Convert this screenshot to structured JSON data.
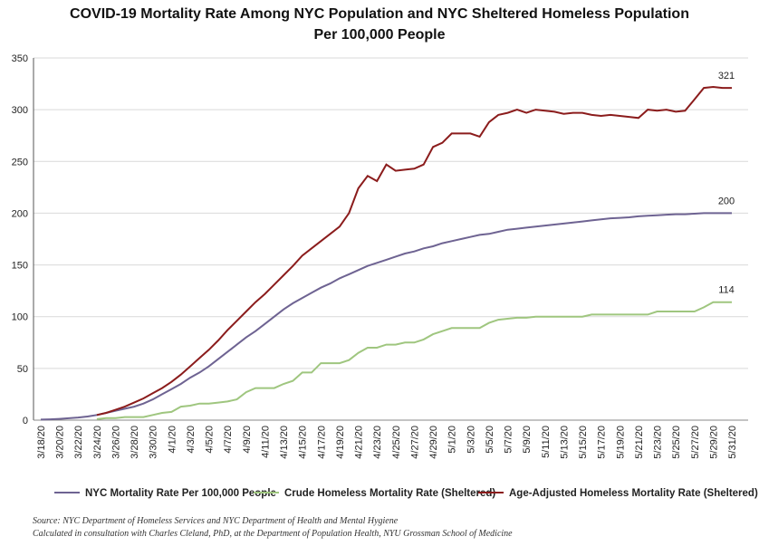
{
  "chart_data": {
    "type": "line",
    "title": "COVID-19 Mortality Rate Among NYC Population and NYC Sheltered Homeless Population",
    "subtitle": "Per 100,000 People",
    "source": "Source: NYC Department of Homeless Services and NYC Department of Health and Mental Hygiene",
    "note": "Calculated in consultation with Charles Cleland, PhD, at the Department of Population Health, NYU Grossman School of Medicine",
    "categories": [
      "3/18/20",
      null,
      "3/20/20",
      null,
      "3/22/20",
      null,
      "3/24/20",
      null,
      "3/26/20",
      null,
      "3/28/20",
      null,
      "3/30/20",
      null,
      "4/1/20",
      null,
      "4/3/20",
      null,
      "4/5/20",
      null,
      "4/7/20",
      null,
      "4/9/20",
      null,
      "4/11/20",
      null,
      "4/13/20",
      null,
      "4/15/20",
      null,
      "4/17/20",
      null,
      "4/19/20",
      null,
      "4/21/20",
      null,
      "4/23/20",
      null,
      "4/25/20",
      null,
      "4/27/20",
      null,
      "4/29/20",
      null,
      "5/1/20",
      null,
      "5/3/20",
      null,
      "5/5/20",
      null,
      "5/7/20",
      null,
      "5/9/20",
      null,
      "5/11/20",
      null,
      "5/13/20",
      null,
      "5/15/20",
      null,
      "5/17/20",
      null,
      "5/19/20",
      null,
      "5/21/20",
      null,
      "5/23/20",
      null,
      "5/25/20",
      null,
      "5/27/20",
      null,
      "5/29/20",
      null,
      "5/31/20"
    ],
    "series": [
      {
        "name": "NYC Mortality Rate Per 100,000 People",
        "color": "#6e6392",
        "end_label": "200",
        "values": [
          0.5,
          0.8,
          1.2,
          1.8,
          2.5,
          3.5,
          5,
          7,
          9,
          11,
          13,
          16,
          20,
          25,
          30,
          35,
          41,
          46,
          52,
          59,
          66,
          73,
          80,
          86,
          93,
          100,
          107,
          113,
          118,
          123,
          128,
          132,
          137,
          141,
          145,
          149,
          152,
          155,
          158,
          161,
          163,
          166,
          168,
          171,
          173,
          175,
          177,
          179,
          180,
          182,
          184,
          185,
          186,
          187,
          188,
          189,
          190,
          191,
          192,
          193,
          194,
          195,
          195.5,
          196,
          197,
          197.5,
          198,
          198.5,
          199,
          199,
          199.5,
          200,
          200,
          200,
          200
        ]
      },
      {
        "name": "Crude Homeless Mortality Rate (Sheltered)",
        "color": "#9fc67f",
        "end_label": "114",
        "values": [
          null,
          null,
          null,
          null,
          null,
          null,
          1,
          2,
          2,
          3,
          3,
          3,
          5,
          7,
          8,
          13,
          14,
          16,
          16,
          17,
          18,
          20,
          27,
          31,
          31,
          31,
          35,
          38,
          46,
          46,
          55,
          55,
          55,
          58,
          65,
          70,
          70,
          73,
          73,
          75,
          75,
          78,
          83,
          86,
          89,
          89,
          89,
          89,
          94,
          97,
          98,
          99,
          99,
          100,
          100,
          100,
          100,
          100,
          100,
          102,
          102,
          102,
          102,
          102,
          102,
          102,
          105,
          105,
          105,
          105,
          105,
          109,
          114,
          114,
          114
        ]
      },
      {
        "name": "Age-Adjusted Homeless Mortality Rate (Sheltered)",
        "color": "#8b1c1c",
        "end_label": "321",
        "values": [
          null,
          null,
          null,
          null,
          null,
          null,
          5,
          7,
          10,
          13,
          17,
          21,
          26,
          31,
          37,
          44,
          52,
          60,
          68,
          77,
          87,
          96,
          105,
          114,
          122,
          131,
          140,
          149,
          159,
          166,
          173,
          180,
          187,
          200,
          224,
          236,
          231,
          247,
          241,
          242,
          243,
          247,
          264,
          268,
          277,
          277,
          277,
          274,
          288,
          295,
          297,
          300,
          297,
          300,
          299,
          298,
          296,
          297,
          297,
          295,
          294,
          295,
          294,
          293,
          292,
          300,
          299,
          300,
          298,
          299,
          310,
          321,
          322,
          321,
          321
        ]
      }
    ],
    "ylim": [
      0,
      350
    ],
    "yticks": [
      0,
      50,
      100,
      150,
      200,
      250,
      300,
      350
    ],
    "grid": true
  }
}
